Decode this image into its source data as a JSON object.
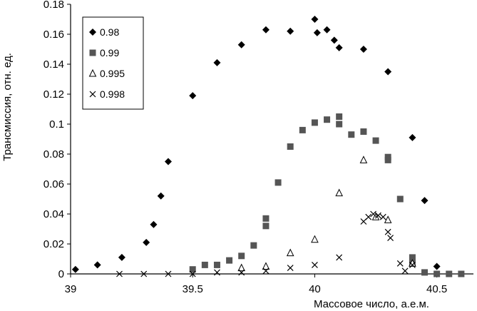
{
  "chart_data": {
    "type": "scatter",
    "xlabel": "Массовое число,  а.е.м.",
    "ylabel": "Трансмиссия,  отн. ед.",
    "xlim": [
      39,
      40.65
    ],
    "ylim": [
      0,
      0.18
    ],
    "xticks": [
      "39",
      "39.5",
      "40",
      "40.5"
    ],
    "yticks": [
      "0",
      "0.02",
      "0.04",
      "0.06",
      "0.08",
      "0.1",
      "0.12",
      "0.14",
      "0.16",
      "0.18"
    ],
    "legend_position": "top-left",
    "grid": false,
    "series": [
      {
        "name": "0.98",
        "marker": "diamond",
        "color": "#000000",
        "points": [
          [
            39.02,
            0.003
          ],
          [
            39.11,
            0.006
          ],
          [
            39.21,
            0.011
          ],
          [
            39.31,
            0.021
          ],
          [
            39.34,
            0.033
          ],
          [
            39.37,
            0.052
          ],
          [
            39.4,
            0.075
          ],
          [
            39.5,
            0.119
          ],
          [
            39.6,
            0.141
          ],
          [
            39.7,
            0.153
          ],
          [
            39.8,
            0.163
          ],
          [
            39.9,
            0.162
          ],
          [
            40.0,
            0.17
          ],
          [
            40.01,
            0.161
          ],
          [
            40.05,
            0.163
          ],
          [
            40.08,
            0.156
          ],
          [
            40.1,
            0.151
          ],
          [
            40.2,
            0.15
          ],
          [
            40.3,
            0.135
          ],
          [
            40.4,
            0.091
          ],
          [
            40.45,
            0.049
          ],
          [
            40.5,
            0.005
          ]
        ]
      },
      {
        "name": "0.99",
        "marker": "square",
        "color": "#555555",
        "points": [
          [
            39.5,
            0.003
          ],
          [
            39.55,
            0.006
          ],
          [
            39.6,
            0.006
          ],
          [
            39.65,
            0.009
          ],
          [
            39.7,
            0.012
          ],
          [
            39.75,
            0.019
          ],
          [
            39.8,
            0.032
          ],
          [
            39.8,
            0.037
          ],
          [
            39.85,
            0.061
          ],
          [
            39.9,
            0.085
          ],
          [
            39.95,
            0.096
          ],
          [
            40.0,
            0.101
          ],
          [
            40.05,
            0.103
          ],
          [
            40.1,
            0.105
          ],
          [
            40.1,
            0.1
          ],
          [
            40.15,
            0.093
          ],
          [
            40.2,
            0.095
          ],
          [
            40.25,
            0.089
          ],
          [
            40.3,
            0.078
          ],
          [
            40.3,
            0.076
          ],
          [
            40.35,
            0.05
          ],
          [
            40.4,
            0.011
          ],
          [
            40.4,
            0.007
          ],
          [
            40.45,
            0.001
          ],
          [
            40.5,
            0.0
          ],
          [
            40.55,
            0.0
          ],
          [
            40.6,
            0.0
          ]
        ]
      },
      {
        "name": "0.995",
        "marker": "triangle",
        "color": "#000000",
        "points": [
          [
            39.7,
            0.004
          ],
          [
            39.8,
            0.005
          ],
          [
            39.9,
            0.014
          ],
          [
            40.0,
            0.023
          ],
          [
            40.1,
            0.054
          ],
          [
            40.2,
            0.076
          ],
          [
            40.25,
            0.038
          ],
          [
            40.3,
            0.036
          ],
          [
            40.4,
            0.007
          ]
        ]
      },
      {
        "name": "0.998",
        "marker": "x",
        "color": "#000000",
        "points": [
          [
            39.2,
            0.0
          ],
          [
            39.3,
            0.0
          ],
          [
            39.4,
            0.0
          ],
          [
            39.5,
            0.0
          ],
          [
            39.6,
            0.001
          ],
          [
            39.7,
            0.001
          ],
          [
            39.8,
            0.002
          ],
          [
            39.9,
            0.004
          ],
          [
            40.0,
            0.006
          ],
          [
            40.1,
            0.011
          ],
          [
            40.2,
            0.035
          ],
          [
            40.22,
            0.038
          ],
          [
            40.24,
            0.04
          ],
          [
            40.26,
            0.039
          ],
          [
            40.28,
            0.038
          ],
          [
            40.3,
            0.028
          ],
          [
            40.31,
            0.024
          ],
          [
            40.35,
            0.007
          ],
          [
            40.37,
            0.002
          ],
          [
            40.4,
            0.006
          ]
        ]
      }
    ]
  }
}
